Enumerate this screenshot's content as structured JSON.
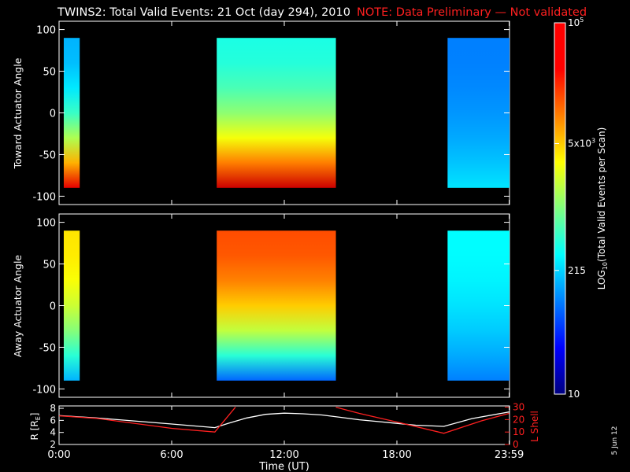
{
  "title": "TWINS2: Total Valid Events: 21 Oct (day 294), 2010",
  "note": "NOTE: Data Preliminary — Not validated",
  "stamp": "5 Jun 12",
  "colorbar": {
    "label": "LOG10(Total Valid Events per Scan)",
    "label_main": "LOG",
    "label_sub": "10",
    "label_rest": "(Total Valid Events per Scan)",
    "ticks": [
      {
        "value": 100000,
        "base": "10",
        "sup": "5"
      },
      {
        "value": 5000,
        "base": "5x10",
        "sup": "3"
      },
      {
        "value": 215,
        "base": "215",
        "sup": ""
      },
      {
        "value": 10,
        "base": "10",
        "sup": ""
      }
    ],
    "log_range": [
      1,
      5
    ]
  },
  "x_axis": {
    "label": "Time (UT)",
    "ticks": [
      "0:00",
      "6:00",
      "12:00",
      "18:00",
      "23:59"
    ],
    "tick_hours": [
      0,
      6,
      12,
      18,
      23.983
    ],
    "range_hours": [
      0,
      24
    ]
  },
  "chart_data": [
    {
      "type": "heatmap",
      "ylabel": "Toward Actuator Angle",
      "yticks": [
        100,
        50,
        0,
        -50,
        -100
      ],
      "ylim": [
        -110,
        110
      ],
      "z_scale": "log",
      "data_blocks": [
        {
          "t_start": 0.25,
          "t_end": 1.1,
          "angle_range": [
            -90,
            90
          ],
          "level_top": 2.2,
          "level_bottom": 4.6
        },
        {
          "t_start": 8.4,
          "t_end": 14.75,
          "angle_range": [
            -90,
            90
          ],
          "level_top": 2.6,
          "level_bottom": 4.7
        },
        {
          "t_start": 20.7,
          "t_end": 24,
          "angle_range": [
            -90,
            90
          ],
          "level_top": 2.0,
          "level_bottom": 2.4
        }
      ]
    },
    {
      "type": "heatmap",
      "ylabel": "Away Actuator Angle",
      "yticks": [
        100,
        50,
        0,
        -50,
        -100
      ],
      "ylim": [
        -110,
        110
      ],
      "z_scale": "log",
      "data_blocks": [
        {
          "t_start": 0.25,
          "t_end": 1.1,
          "angle_range": [
            -90,
            90
          ],
          "level_top": 3.6,
          "level_bottom": 2.2
        },
        {
          "t_start": 8.4,
          "t_end": 14.75,
          "angle_range": [
            -90,
            90
          ],
          "level_top": 4.2,
          "level_bottom": 1.9
        },
        {
          "t_start": 20.7,
          "t_end": 24,
          "angle_range": [
            -90,
            90
          ],
          "level_top": 2.5,
          "level_bottom": 2.0
        }
      ]
    },
    {
      "type": "line",
      "ylabel": "R [RE]",
      "ylabel_main": "R [R",
      "ylabel_sub": "E",
      "ylabel_end": "]",
      "ylabel_right": "L Shell",
      "yticks_left": [
        2,
        4,
        6,
        8
      ],
      "ylim_left": [
        2,
        8.4
      ],
      "yticks_right": [
        0,
        10,
        20,
        30
      ],
      "ylim_right": [
        0,
        31
      ],
      "series": [
        {
          "name": "R",
          "axis": "left",
          "color": "#ffffff",
          "x": [
            0,
            2,
            4,
            6,
            8.3,
            9,
            10,
            11,
            12,
            13,
            14,
            15,
            16,
            17,
            18,
            19,
            20.5,
            22,
            23.98
          ],
          "y": [
            6.8,
            6.4,
            5.9,
            5.4,
            4.8,
            5.5,
            6.4,
            7.0,
            7.2,
            7.1,
            6.9,
            6.5,
            6.1,
            5.8,
            5.5,
            5.2,
            5.0,
            6.3,
            7.4
          ]
        },
        {
          "name": "L Shell",
          "axis": "right",
          "color": "#ff2020",
          "x": [
            0,
            2,
            4,
            6,
            8.3,
            9.4,
            9.45,
            14.75,
            16,
            18,
            20.5,
            22.5,
            23.98
          ],
          "y": [
            23,
            21,
            17,
            13,
            10,
            30,
            null,
            30,
            25,
            18,
            9,
            19,
            25
          ]
        }
      ]
    }
  ]
}
